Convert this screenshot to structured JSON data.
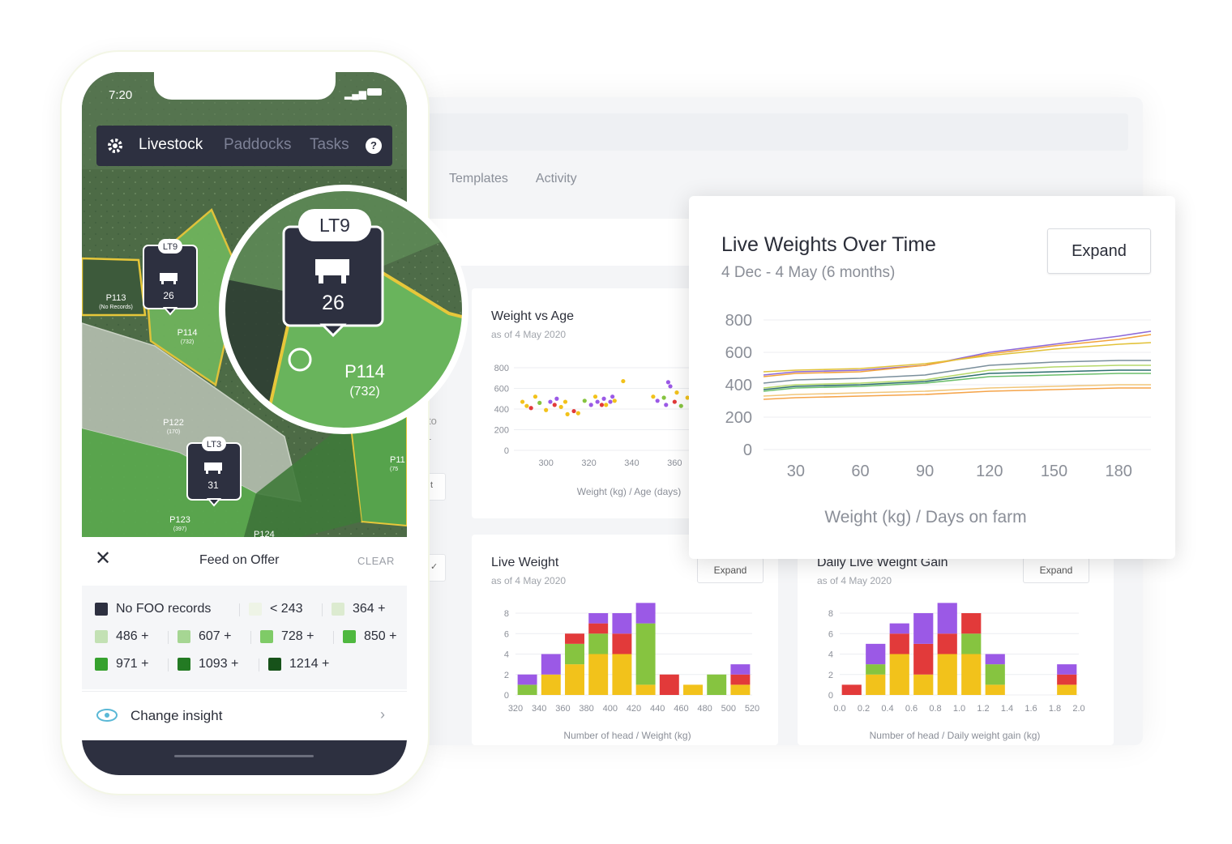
{
  "phone": {
    "status_time": "7:20",
    "nav": {
      "livestock": "Livestock",
      "paddocks": "Paddocks",
      "tasks": "Tasks"
    },
    "map": {
      "markers": [
        {
          "label": "LT9",
          "count": "26"
        },
        {
          "label": "LT3",
          "count": "31"
        }
      ],
      "zoom_marker": {
        "label": "LT9",
        "count": "26"
      },
      "paddocks": [
        {
          "name": "P113",
          "note": "(No Records)"
        },
        {
          "name": "P114",
          "note": "(732)"
        },
        {
          "name": "P122",
          "note": "(170)"
        },
        {
          "name": "P123",
          "note": "(397)"
        },
        {
          "name": "P11",
          "note": "(75"
        },
        {
          "name": "P124",
          "note": ""
        }
      ],
      "zoom_paddock": {
        "name": "P114",
        "note": "(732)"
      }
    },
    "feed_on_offer": {
      "title": "Feed on Offer",
      "clear": "CLEAR",
      "legend": [
        {
          "label": "No FOO records",
          "color": "#2d3040"
        },
        {
          "label": "< 243",
          "color": "#eef4e6"
        },
        {
          "label": "364 +",
          "color": "#dcebd0"
        },
        {
          "label": "486 +",
          "color": "#c3e1b4"
        },
        {
          "label": "607 +",
          "color": "#a6d693"
        },
        {
          "label": "728 +",
          "color": "#7fcb67"
        },
        {
          "label": "850 +",
          "color": "#4fb840"
        },
        {
          "label": "971 +",
          "color": "#36a12e"
        },
        {
          "label": "1093 +",
          "color": "#237a23"
        },
        {
          "label": "1214 +",
          "color": "#17521a"
        }
      ]
    },
    "change_insight": "Change insight"
  },
  "dashboard": {
    "tabs": [
      "Templates",
      "Activity"
    ],
    "left_fragments": [
      "to",
      "-",
      "t"
    ],
    "weight_vs_age": {
      "title": "Weight vs Age",
      "subtitle": "as of 4 May 2020",
      "xlabel": "Weight (kg) / Age (days)"
    },
    "live_weight": {
      "title": "Live Weight",
      "subtitle": "as of 4 May 2020",
      "expand": "Expand",
      "xlabel": "Number of head / Weight (kg)"
    },
    "daily_gain": {
      "title": "Daily Live Weight Gain",
      "subtitle": "as of 4 May 2020",
      "expand": "Expand",
      "xlabel": "Number of head / Daily weight gain (kg)"
    },
    "popup": {
      "title": "Live Weights Over Time",
      "subtitle": "4 Dec - 4 May (6 months)",
      "expand": "Expand",
      "xlabel": "Weight (kg) / Days on farm"
    }
  },
  "colors": {
    "purple": "#9b59e6",
    "red": "#e23a3a",
    "green": "#86c440",
    "yellow": "#f2c21b",
    "dark": "#2d3040"
  },
  "chart_data": [
    {
      "id": "weight_vs_age",
      "type": "scatter",
      "title": "Weight vs Age",
      "xlabel": "Weight (kg) / Age (days)",
      "x_ticks": [
        300,
        320,
        340,
        360
      ],
      "y_ticks": [
        0,
        200,
        400,
        600,
        800
      ],
      "ylim": [
        0,
        800
      ],
      "xlim": [
        285,
        375
      ],
      "points": [
        {
          "x": 289,
          "y": 470,
          "c": "yellow"
        },
        {
          "x": 291,
          "y": 430,
          "c": "yellow"
        },
        {
          "x": 293,
          "y": 410,
          "c": "red"
        },
        {
          "x": 295,
          "y": 520,
          "c": "yellow"
        },
        {
          "x": 297,
          "y": 460,
          "c": "green"
        },
        {
          "x": 300,
          "y": 390,
          "c": "yellow"
        },
        {
          "x": 302,
          "y": 470,
          "c": "purple"
        },
        {
          "x": 304,
          "y": 440,
          "c": "red"
        },
        {
          "x": 305,
          "y": 500,
          "c": "purple"
        },
        {
          "x": 307,
          "y": 420,
          "c": "yellow"
        },
        {
          "x": 309,
          "y": 470,
          "c": "yellow"
        },
        {
          "x": 310,
          "y": 350,
          "c": "yellow"
        },
        {
          "x": 313,
          "y": 380,
          "c": "red"
        },
        {
          "x": 315,
          "y": 360,
          "c": "yellow"
        },
        {
          "x": 318,
          "y": 480,
          "c": "green"
        },
        {
          "x": 321,
          "y": 440,
          "c": "purple"
        },
        {
          "x": 323,
          "y": 520,
          "c": "yellow"
        },
        {
          "x": 324,
          "y": 470,
          "c": "purple"
        },
        {
          "x": 326,
          "y": 440,
          "c": "red"
        },
        {
          "x": 327,
          "y": 500,
          "c": "purple"
        },
        {
          "x": 328,
          "y": 440,
          "c": "yellow"
        },
        {
          "x": 330,
          "y": 470,
          "c": "purple"
        },
        {
          "x": 331,
          "y": 520,
          "c": "purple"
        },
        {
          "x": 332,
          "y": 480,
          "c": "yellow"
        },
        {
          "x": 336,
          "y": 670,
          "c": "yellow"
        },
        {
          "x": 350,
          "y": 520,
          "c": "yellow"
        },
        {
          "x": 352,
          "y": 480,
          "c": "purple"
        },
        {
          "x": 355,
          "y": 510,
          "c": "green"
        },
        {
          "x": 356,
          "y": 440,
          "c": "purple"
        },
        {
          "x": 357,
          "y": 660,
          "c": "purple"
        },
        {
          "x": 358,
          "y": 620,
          "c": "purple"
        },
        {
          "x": 360,
          "y": 470,
          "c": "red"
        },
        {
          "x": 361,
          "y": 560,
          "c": "yellow"
        },
        {
          "x": 363,
          "y": 430,
          "c": "green"
        },
        {
          "x": 366,
          "y": 510,
          "c": "yellow"
        },
        {
          "x": 369,
          "y": 490,
          "c": "green"
        },
        {
          "x": 371,
          "y": 470,
          "c": "red"
        },
        {
          "x": 372,
          "y": 530,
          "c": "green"
        }
      ]
    },
    {
      "id": "live_weight",
      "type": "bar",
      "title": "Live Weight",
      "xlabel": "Number of head / Weight (kg)",
      "categories": [
        "320",
        "340",
        "360",
        "380",
        "400",
        "420",
        "440",
        "460",
        "480",
        "500",
        "520"
      ],
      "y_ticks": [
        0,
        2,
        4,
        6,
        8
      ],
      "ylim": [
        0,
        8
      ],
      "stack_order": [
        "yellow",
        "green",
        "red",
        "purple"
      ],
      "bars": [
        {
          "yellow": 0,
          "green": 1,
          "red": 0,
          "purple": 1
        },
        {
          "yellow": 2,
          "green": 0,
          "red": 0,
          "purple": 2
        },
        {
          "yellow": 3,
          "green": 2,
          "red": 1,
          "purple": 0
        },
        {
          "yellow": 4,
          "green": 2,
          "red": 1,
          "purple": 1
        },
        {
          "yellow": 4,
          "green": 0,
          "red": 2,
          "purple": 2
        },
        {
          "yellow": 1,
          "green": 6,
          "red": 0,
          "purple": 2
        },
        {
          "yellow": 0,
          "green": 0,
          "red": 2,
          "purple": 0
        },
        {
          "yellow": 1,
          "green": 0,
          "red": 0,
          "purple": 0
        },
        {
          "yellow": 0,
          "green": 2,
          "red": 0,
          "purple": 0
        },
        {
          "yellow": 1,
          "green": 0,
          "red": 1,
          "purple": 1
        }
      ]
    },
    {
      "id": "daily_gain",
      "type": "bar",
      "title": "Daily Live Weight Gain",
      "xlabel": "Number of head / Daily weight gain (kg)",
      "categories": [
        "0.0",
        "0.2",
        "0.4",
        "0.6",
        "0.8",
        "1.0",
        "1.2",
        "1.4",
        "1.6",
        "1.8",
        "2.0"
      ],
      "y_ticks": [
        0,
        2,
        4,
        6,
        8
      ],
      "ylim": [
        0,
        8
      ],
      "stack_order": [
        "yellow",
        "green",
        "red",
        "purple"
      ],
      "bars": [
        {
          "yellow": 0,
          "green": 0,
          "red": 1,
          "purple": 0
        },
        {
          "yellow": 2,
          "green": 1,
          "red": 0,
          "purple": 2
        },
        {
          "yellow": 4,
          "green": 0,
          "red": 2,
          "purple": 1
        },
        {
          "yellow": 2,
          "green": 0,
          "red": 3,
          "purple": 3
        },
        {
          "yellow": 4,
          "green": 0,
          "red": 2,
          "purple": 3
        },
        {
          "yellow": 4,
          "green": 2,
          "red": 2,
          "purple": 0
        },
        {
          "yellow": 1,
          "green": 2,
          "red": 0,
          "purple": 1
        },
        {
          "yellow": 0,
          "green": 0,
          "red": 0,
          "purple": 0
        },
        {
          "yellow": 0,
          "green": 0,
          "red": 0,
          "purple": 0
        },
        {
          "yellow": 1,
          "green": 0,
          "red": 1,
          "purple": 1
        }
      ]
    },
    {
      "id": "live_weights_over_time",
      "type": "line",
      "title": "Live Weights Over Time",
      "subtitle": "4 Dec - 4 May (6 months)",
      "xlabel": "Weight (kg) / Days on farm",
      "x_ticks": [
        30,
        60,
        90,
        120,
        150,
        180
      ],
      "y_ticks": [
        0,
        200,
        400,
        600,
        800
      ],
      "ylim": [
        0,
        800
      ],
      "x": [
        15,
        30,
        60,
        90,
        120,
        150,
        180,
        195
      ],
      "series": [
        {
          "color": "#8e6ad8",
          "values": [
            460,
            480,
            490,
            520,
            600,
            650,
            700,
            730
          ]
        },
        {
          "color": "#f2a13a",
          "values": [
            450,
            470,
            480,
            520,
            590,
            640,
            680,
            710
          ]
        },
        {
          "color": "#e2c23a",
          "values": [
            480,
            490,
            500,
            530,
            580,
            620,
            650,
            660
          ]
        },
        {
          "color": "#7a8f9c",
          "values": [
            410,
            430,
            440,
            460,
            520,
            540,
            550,
            550
          ]
        },
        {
          "color": "#b6d86a",
          "values": [
            380,
            400,
            410,
            430,
            490,
            510,
            520,
            520
          ]
        },
        {
          "color": "#2f6f6f",
          "values": [
            370,
            390,
            400,
            420,
            470,
            480,
            490,
            490
          ]
        },
        {
          "color": "#6cbf6c",
          "values": [
            360,
            380,
            390,
            410,
            450,
            460,
            470,
            470
          ]
        },
        {
          "color": "#f1c67a",
          "values": [
            330,
            340,
            350,
            360,
            380,
            390,
            400,
            400
          ]
        },
        {
          "color": "#f5a44a",
          "values": [
            310,
            320,
            330,
            340,
            360,
            370,
            380,
            380
          ]
        }
      ]
    }
  ]
}
